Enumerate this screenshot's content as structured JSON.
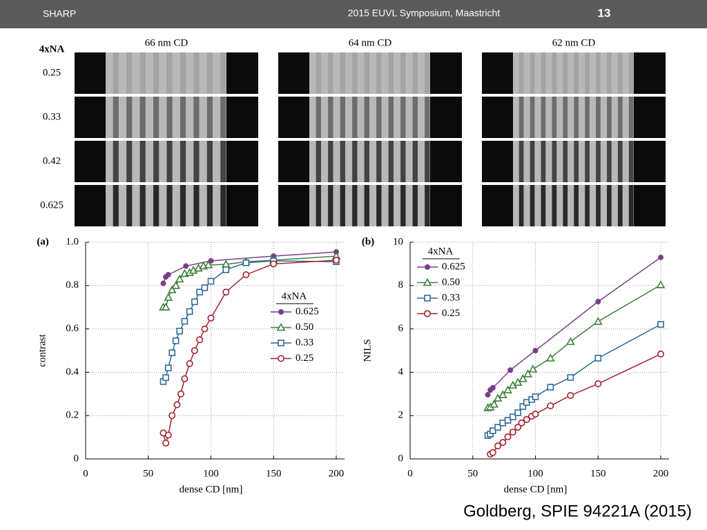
{
  "header": {
    "left": "SHARP",
    "center": "2015 EUVL Symposium, Maastricht",
    "page": "13"
  },
  "images": {
    "row_title": "4xNA",
    "columns": [
      "66 nm CD",
      "64 nm CD",
      "62 nm CD"
    ],
    "rows": [
      "0.25",
      "0.33",
      "0.42",
      "0.625"
    ]
  },
  "citation": "Goldberg, SPIE 94221A (2015)",
  "chart_data": [
    {
      "type": "line",
      "panel": "(a)",
      "x_label": "dense CD [nm]",
      "y_label": "contrast",
      "xlim": [
        0,
        200
      ],
      "ylim": [
        0,
        1
      ],
      "xticks": [
        0,
        50,
        100,
        150,
        200
      ],
      "yticks": [
        0,
        0.2,
        0.4,
        0.6,
        0.8,
        {
          "value": 1,
          "label": "1.0"
        }
      ],
      "grid": true,
      "legend": "center right",
      "legend_title": "4xNA",
      "series": [
        {
          "name": "0.625",
          "color": "#7a3e8a",
          "marker": "filled-circle",
          "x": [
            62,
            64,
            66,
            80,
            100,
            150,
            200
          ],
          "values": [
            0.81,
            0.84,
            0.85,
            0.89,
            0.914,
            0.936,
            0.955
          ]
        },
        {
          "name": "0.50",
          "color": "#3d7f3a",
          "marker": "triangle",
          "x": [
            62,
            64,
            66,
            69,
            72,
            75,
            79,
            83,
            86,
            90,
            94,
            98,
            112,
            128,
            150,
            200
          ],
          "values": [
            0.7,
            0.7,
            0.745,
            0.78,
            0.8,
            0.83,
            0.855,
            0.86,
            0.87,
            0.88,
            0.89,
            0.895,
            0.898,
            0.91,
            0.917,
            0.936
          ]
        },
        {
          "name": "0.33",
          "color": "#2f6a94",
          "marker": "square",
          "x": [
            62,
            64,
            66,
            69,
            72,
            75,
            79,
            83,
            87,
            91,
            95,
            100,
            112,
            128,
            150,
            200
          ],
          "values": [
            0.357,
            0.375,
            0.42,
            0.49,
            0.545,
            0.59,
            0.635,
            0.68,
            0.725,
            0.77,
            0.79,
            0.82,
            0.873,
            0.905,
            0.914,
            0.91
          ]
        },
        {
          "name": "0.25",
          "color": "#a3202c",
          "marker": "circle",
          "x": [
            62,
            64,
            66,
            69,
            73,
            76,
            79,
            83,
            87,
            91,
            95,
            100,
            112,
            128,
            150,
            200
          ],
          "values": [
            0.12,
            0.073,
            0.11,
            0.2,
            0.25,
            0.3,
            0.37,
            0.44,
            0.5,
            0.55,
            0.6,
            0.65,
            0.77,
            0.85,
            0.9,
            0.917
          ]
        }
      ]
    },
    {
      "type": "line",
      "panel": "(b)",
      "x_label": "dense CD [nm]",
      "y_label": "NILS",
      "xlim": [
        0,
        200
      ],
      "ylim": [
        0,
        10
      ],
      "xticks": [
        0,
        50,
        100,
        150,
        200
      ],
      "yticks": [
        0,
        2,
        4,
        6,
        8,
        10
      ],
      "grid": true,
      "legend": "upper left",
      "legend_title": "4xNA",
      "series": [
        {
          "name": "0.625",
          "color": "#7a3e8a",
          "marker": "filled-circle",
          "x": [
            62,
            64,
            66,
            80,
            100,
            150,
            200
          ],
          "values": [
            2.96,
            3.18,
            3.28,
            4.1,
            5.0,
            7.26,
            9.3
          ]
        },
        {
          "name": "0.50",
          "color": "#3d7f3a",
          "marker": "triangle",
          "x": [
            62,
            64,
            67,
            70,
            74,
            78,
            82,
            86,
            90,
            94,
            98,
            112,
            128,
            150,
            200
          ],
          "values": [
            2.36,
            2.39,
            2.52,
            2.8,
            2.96,
            3.18,
            3.4,
            3.53,
            3.7,
            3.92,
            4.14,
            4.65,
            5.41,
            6.34,
            8.03
          ]
        },
        {
          "name": "0.33",
          "color": "#2f6a94",
          "marker": "square",
          "x": [
            62,
            64,
            66,
            70,
            74,
            78,
            82,
            86,
            90,
            93,
            97,
            100,
            112,
            128,
            150,
            200
          ],
          "values": [
            1.08,
            1.15,
            1.3,
            1.46,
            1.66,
            1.78,
            1.94,
            2.13,
            2.42,
            2.61,
            2.74,
            2.87,
            3.31,
            3.76,
            4.65,
            6.21
          ]
        },
        {
          "name": "0.25",
          "color": "#a3202c",
          "marker": "circle",
          "x": [
            64,
            66,
            70,
            74,
            78,
            82,
            86,
            89,
            93,
            97,
            100,
            112,
            128,
            150,
            200
          ],
          "values": [
            0.22,
            0.29,
            0.6,
            0.76,
            1.02,
            1.24,
            1.46,
            1.66,
            1.82,
            1.97,
            2.07,
            2.45,
            2.93,
            3.47,
            4.84
          ]
        }
      ]
    }
  ]
}
